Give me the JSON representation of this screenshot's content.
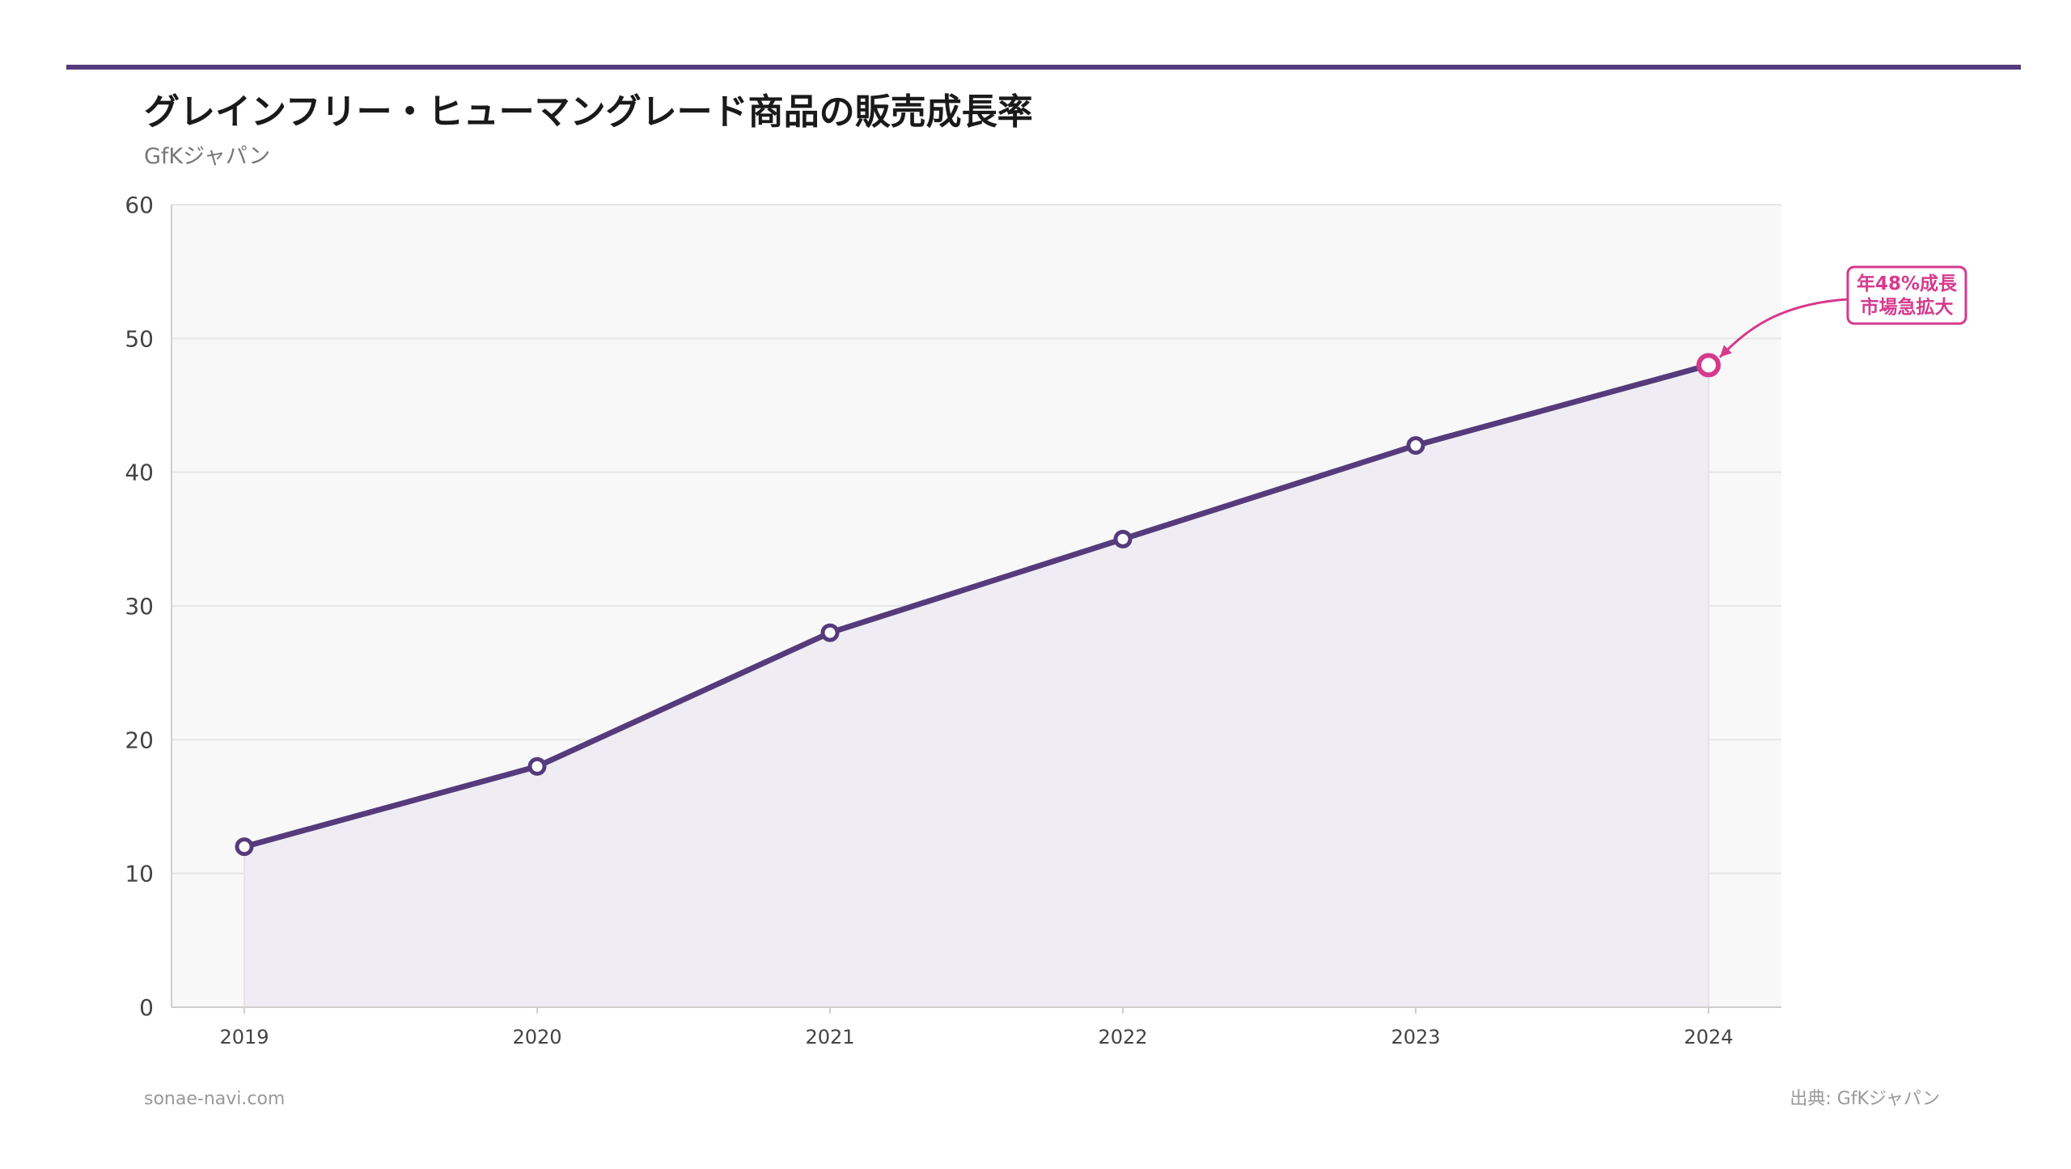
{
  "colors": {
    "accent": "#553b7c",
    "highlight": "#d63a8e",
    "plot_background": "#f8f8f9",
    "area_fill": "#efedf3",
    "grid": "#e6e6e6",
    "axis": "#cfcfcf"
  },
  "chart_data": {
    "type": "area",
    "title": "グレインフリー・ヒューマングレード商品の販売成長率",
    "subtitle": "GfKジャパン",
    "xlabel": "",
    "ylabel": "",
    "categories": [
      "2019",
      "2020",
      "2021",
      "2022",
      "2023",
      "2024"
    ],
    "series": [
      {
        "name": "販売成長率",
        "values": [
          12,
          18,
          28,
          35,
          42,
          48
        ]
      }
    ],
    "ylim": [
      0,
      60
    ],
    "yticks": [
      "0",
      "10",
      "20",
      "30",
      "40",
      "50",
      "60"
    ],
    "grid": true,
    "annotation": {
      "target_category": "2024",
      "target_value": 48,
      "lines": [
        "年48%成長",
        "市場急拡大"
      ]
    }
  },
  "footer": {
    "left": "sonae-navi.com",
    "right": "出典: GfKジャパン"
  }
}
